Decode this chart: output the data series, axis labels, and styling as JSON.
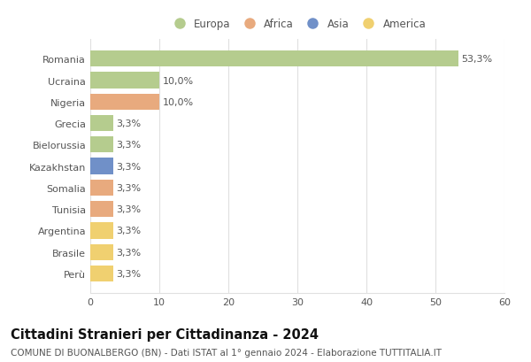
{
  "countries": [
    "Romania",
    "Ucraina",
    "Nigeria",
    "Grecia",
    "Bielorussia",
    "Kazakhstan",
    "Somalia",
    "Tunisia",
    "Argentina",
    "Brasile",
    "Perù"
  ],
  "values": [
    53.3,
    10.0,
    10.0,
    3.3,
    3.3,
    3.3,
    3.3,
    3.3,
    3.3,
    3.3,
    3.3
  ],
  "labels": [
    "53,3%",
    "10,0%",
    "10,0%",
    "3,3%",
    "3,3%",
    "3,3%",
    "3,3%",
    "3,3%",
    "3,3%",
    "3,3%",
    "3,3%"
  ],
  "colors": [
    "#b5cc8e",
    "#b5cc8e",
    "#e8aa7e",
    "#b5cc8e",
    "#b5cc8e",
    "#7090c8",
    "#e8aa7e",
    "#e8aa7e",
    "#f0d070",
    "#f0d070",
    "#f0d070"
  ],
  "legend_labels": [
    "Europa",
    "Africa",
    "Asia",
    "America"
  ],
  "legend_colors": [
    "#b5cc8e",
    "#e8aa7e",
    "#7090c8",
    "#f0d070"
  ],
  "xlim": [
    0,
    60
  ],
  "xticks": [
    0,
    10,
    20,
    30,
    40,
    50,
    60
  ],
  "title": "Cittadini Stranieri per Cittadinanza - 2024",
  "subtitle": "COMUNE DI BUONALBERGO (BN) - Dati ISTAT al 1° gennaio 2024 - Elaborazione TUTTITALIA.IT",
  "background_color": "#ffffff",
  "grid_color": "#e0e0e0",
  "title_fontsize": 10.5,
  "subtitle_fontsize": 7.5,
  "label_fontsize": 8,
  "tick_fontsize": 8,
  "legend_fontsize": 8.5
}
